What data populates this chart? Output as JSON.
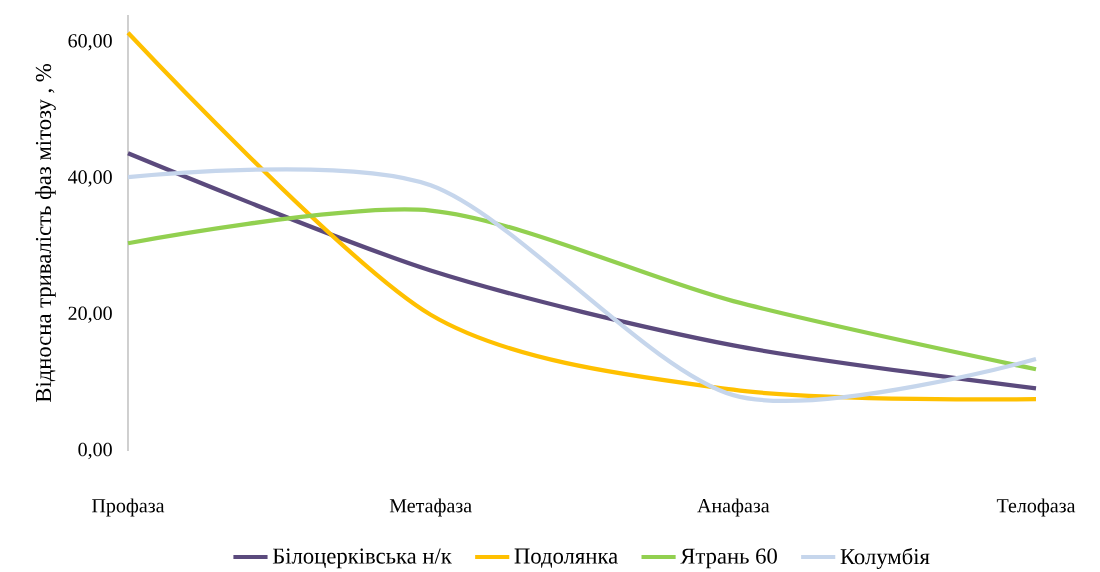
{
  "chart_data": {
    "type": "line",
    "ylabel": "Відносна тривалість фаз мітозу , %",
    "categories": [
      "Профаза",
      "Метафаза",
      "Анафаза",
      "Телофаза"
    ],
    "series": [
      {
        "name": "Білоцерківська н/к",
        "color": "#5b4a7d",
        "values": [
          43.7,
          26.5,
          15.5,
          9.2
        ]
      },
      {
        "name": "Подолянка",
        "color": "#ffc000",
        "values": [
          61.4,
          20.0,
          9.0,
          7.6
        ]
      },
      {
        "name": "Ятрань 60",
        "color": "#92d050",
        "values": [
          30.5,
          35.3,
          22.0,
          12.0
        ]
      },
      {
        "name": "Колумбія",
        "color": "#c6d6ec",
        "values": [
          40.2,
          39.0,
          8.2,
          13.5
        ]
      }
    ],
    "ylim": [
      0,
      64
    ],
    "yticks": [
      {
        "value": 0,
        "label": "0,00"
      },
      {
        "value": 20,
        "label": "20,00"
      },
      {
        "value": 40,
        "label": "40,00"
      },
      {
        "value": 60,
        "label": "60,00"
      }
    ],
    "legend": "bottom"
  }
}
